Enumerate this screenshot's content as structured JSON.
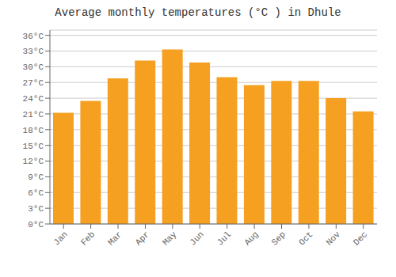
{
  "chart_data": {
    "type": "bar",
    "title": "Average monthly temperatures (°C ) in Dhule",
    "categories": [
      "Jan",
      "Feb",
      "Mar",
      "Apr",
      "May",
      "Jun",
      "Jul",
      "Aug",
      "Sep",
      "Oct",
      "Nov",
      "Dec"
    ],
    "values": [
      21.2,
      23.5,
      27.8,
      31.2,
      33.3,
      30.8,
      28.0,
      26.5,
      27.3,
      27.3,
      24.0,
      21.5
    ],
    "color": "#F5A020",
    "ylim": [
      0,
      37
    ],
    "yticks": [
      {
        "value": 0,
        "label": "0°C"
      },
      {
        "value": 3,
        "label": "3°C"
      },
      {
        "value": 6,
        "label": "6°C"
      },
      {
        "value": 9,
        "label": "9°C"
      },
      {
        "value": 12,
        "label": "12°C"
      },
      {
        "value": 15,
        "label": "15°C"
      },
      {
        "value": 18,
        "label": "18°C"
      },
      {
        "value": 21,
        "label": "21°C"
      },
      {
        "value": 24,
        "label": "24°C"
      },
      {
        "value": 27,
        "label": "27°C"
      },
      {
        "value": 30,
        "label": "30°C"
      },
      {
        "value": 33,
        "label": "33°C"
      },
      {
        "value": 36,
        "label": "36°C"
      }
    ],
    "grid": true
  }
}
